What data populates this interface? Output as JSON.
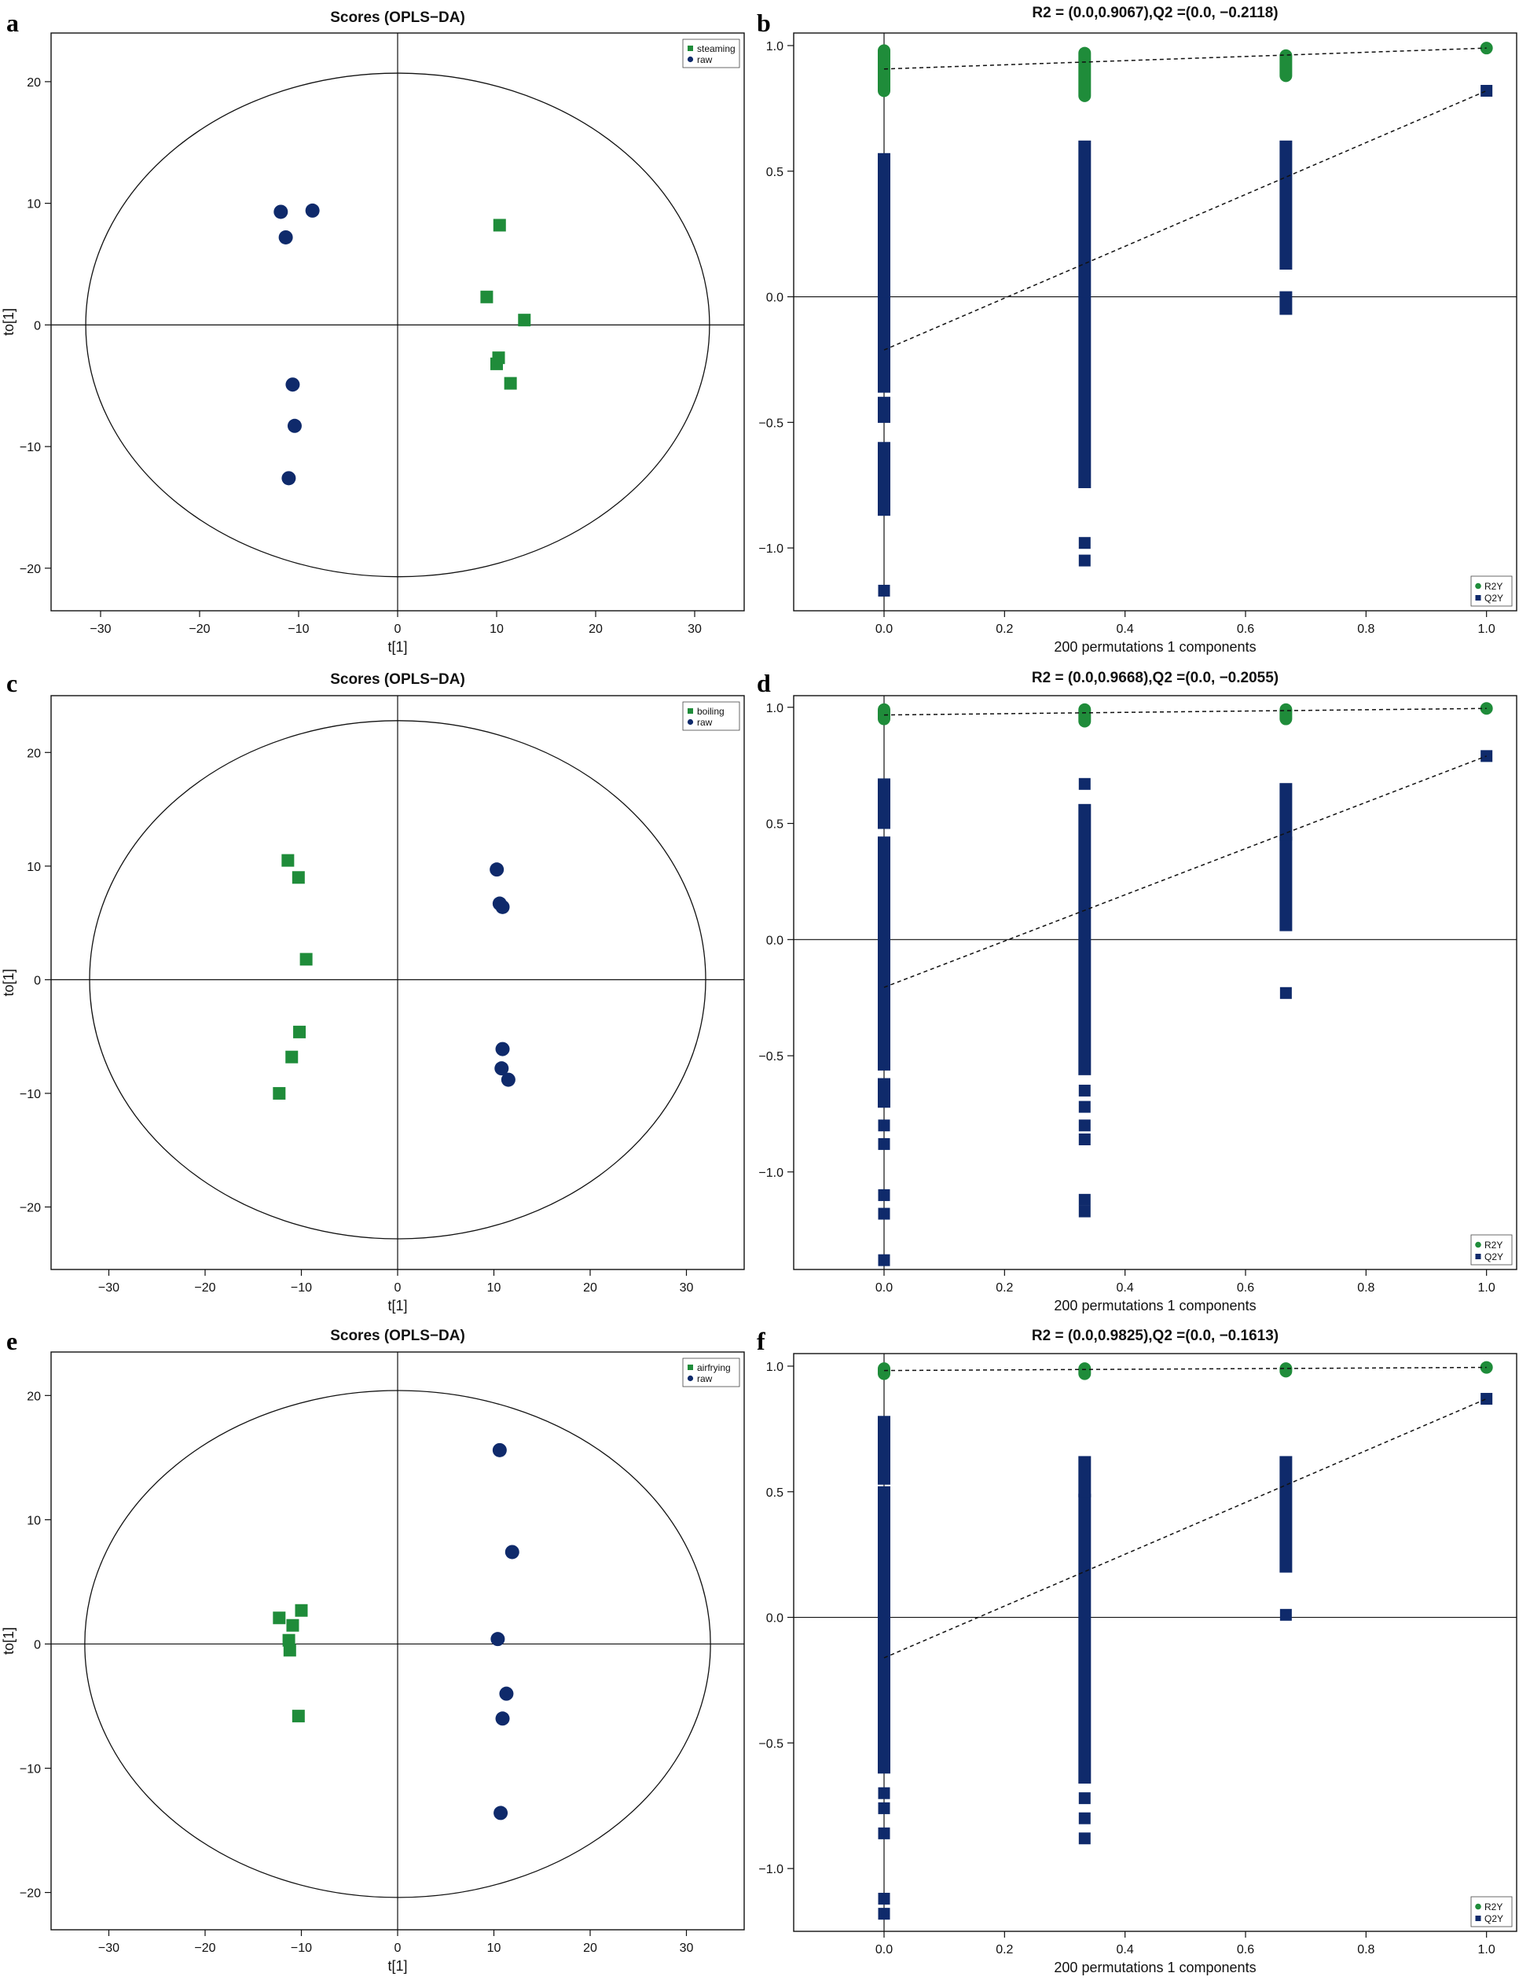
{
  "colors": {
    "green": "#1f8c3a",
    "navy": "#0f2a6b",
    "axis": "#111111"
  },
  "chart_data": [
    {
      "panel": "a",
      "type": "scatter",
      "title": "Scores (OPLS−DA)",
      "xlabel": "t[1]",
      "ylabel": "to[1]",
      "xlim": [
        -35,
        35
      ],
      "ylim": [
        -23.5,
        24
      ],
      "xticks": [
        -30,
        -20,
        -10,
        0,
        10,
        20,
        30
      ],
      "yticks": [
        -20,
        -10,
        0,
        10,
        20
      ],
      "xtick_labels": [
        "−30",
        "−20",
        "−10",
        "0",
        "10",
        "20",
        "30"
      ],
      "ytick_labels": [
        "−20",
        "−10",
        "0",
        "10",
        "20"
      ],
      "ellipse": {
        "rx": 31.5,
        "ry": 20.7
      },
      "legend": {
        "position": "top-right",
        "entries": [
          "steaming",
          "raw"
        ]
      },
      "series": [
        {
          "name": "steaming",
          "marker": "square",
          "color": "green",
          "points": [
            [
              10.3,
              8.2
            ],
            [
              9.0,
              2.3
            ],
            [
              12.8,
              0.4
            ],
            [
              10.2,
              -2.7
            ],
            [
              10.0,
              -3.2
            ],
            [
              11.4,
              -4.8
            ]
          ]
        },
        {
          "name": "raw",
          "marker": "circle",
          "color": "navy",
          "points": [
            [
              -11.8,
              9.3
            ],
            [
              -8.6,
              9.4
            ],
            [
              -11.3,
              7.2
            ],
            [
              -10.6,
              -4.9
            ],
            [
              -10.4,
              -8.3
            ],
            [
              -11.0,
              -12.6
            ]
          ]
        }
      ]
    },
    {
      "panel": "b",
      "type": "scatter",
      "title": "R2 = (0.0,0.9067),Q2 =(0.0, −0.2118)",
      "xlabel": "200 permutations 1 components",
      "ylabel": "",
      "xlim": [
        -0.15,
        1.05
      ],
      "ylim": [
        -1.25,
        1.05
      ],
      "xticks": [
        0,
        0.2,
        0.4,
        0.6,
        0.8,
        1.0
      ],
      "yticks": [
        -1.0,
        -0.5,
        0.0,
        0.5,
        1.0
      ],
      "xtick_labels": [
        "0.0",
        "0.2",
        "0.4",
        "0.6",
        "0.8",
        "1.0"
      ],
      "ytick_labels": [
        "−1.0",
        "−0.5",
        "0.0",
        "0.5",
        "1.0"
      ],
      "legend": {
        "position": "bottom-right",
        "entries": [
          "R2Y",
          "Q2Y"
        ]
      },
      "r2_line": [
        [
          0,
          0.9067
        ],
        [
          1,
          0.99
        ]
      ],
      "q2_line": [
        [
          0,
          -0.2118
        ],
        [
          1,
          0.82
        ]
      ],
      "r2_columns": [
        [
          0,
          0.82,
          0.98
        ],
        [
          0.333,
          0.8,
          0.97
        ],
        [
          0.667,
          0.88,
          0.96
        ]
      ],
      "r2_final": [
        1,
        0.99
      ],
      "q2_columns": [
        {
          "x": 0,
          "segments": [
            [
              -0.85,
              -0.6
            ],
            [
              -0.48,
              -0.42
            ],
            [
              -0.36,
              -0.02
            ],
            [
              0.02,
              0.55
            ]
          ],
          "outliers": [
            -1.17
          ]
        },
        {
          "x": 0.333,
          "segments": [
            [
              -0.74,
              -0.02
            ],
            [
              0.02,
              0.6
            ]
          ],
          "outliers": [
            -0.98,
            -1.05
          ]
        },
        {
          "x": 0.667,
          "segments": [
            [
              -0.05,
              0.0
            ],
            [
              0.13,
              0.6
            ]
          ],
          "outliers": []
        }
      ],
      "q2_final": [
        1,
        0.82
      ]
    },
    {
      "panel": "c",
      "type": "scatter",
      "title": "Scores (OPLS−DA)",
      "xlabel": "t[1]",
      "ylabel": "to[1]",
      "xlim": [
        -36,
        36
      ],
      "ylim": [
        -25.5,
        25
      ],
      "xticks": [
        -30,
        -20,
        -10,
        0,
        10,
        20,
        30
      ],
      "yticks": [
        -20,
        -10,
        0,
        10,
        20
      ],
      "xtick_labels": [
        "−30",
        "−20",
        "−10",
        "0",
        "10",
        "20",
        "30"
      ],
      "ytick_labels": [
        "−20",
        "−10",
        "0",
        "10",
        "20"
      ],
      "ellipse": {
        "rx": 32.0,
        "ry": 22.8
      },
      "legend": {
        "position": "top-right",
        "entries": [
          "boiling",
          "raw"
        ]
      },
      "series": [
        {
          "name": "boiling",
          "marker": "square",
          "color": "green",
          "points": [
            [
              -11.4,
              10.5
            ],
            [
              -10.3,
              9.0
            ],
            [
              -9.5,
              1.8
            ],
            [
              -10.2,
              -4.6
            ],
            [
              -11.0,
              -6.8
            ],
            [
              -12.3,
              -10.0
            ]
          ]
        },
        {
          "name": "raw",
          "marker": "circle",
          "color": "navy",
          "points": [
            [
              10.3,
              9.7
            ],
            [
              10.6,
              6.7
            ],
            [
              10.9,
              6.4
            ],
            [
              10.9,
              -6.1
            ],
            [
              10.8,
              -7.8
            ],
            [
              11.5,
              -8.8
            ]
          ]
        }
      ]
    },
    {
      "panel": "d",
      "type": "scatter",
      "title": "R2 = (0.0,0.9668),Q2 =(0.0, −0.2055)",
      "xlabel": "200 permutations 1 components",
      "ylabel": "",
      "xlim": [
        -0.15,
        1.05
      ],
      "ylim": [
        -1.42,
        1.05
      ],
      "xticks": [
        0,
        0.2,
        0.4,
        0.6,
        0.8,
        1.0
      ],
      "yticks": [
        -1.0,
        -0.5,
        0.0,
        0.5,
        1.0
      ],
      "xtick_labels": [
        "0.0",
        "0.2",
        "0.4",
        "0.6",
        "0.8",
        "1.0"
      ],
      "ytick_labels": [
        "−1.0",
        "−0.5",
        "0.0",
        "0.5",
        "1.0"
      ],
      "legend": {
        "position": "bottom-right",
        "entries": [
          "R2Y",
          "Q2Y"
        ]
      },
      "r2_line": [
        [
          0,
          0.9668
        ],
        [
          1,
          0.995
        ]
      ],
      "q2_line": [
        [
          0,
          -0.2055
        ],
        [
          1,
          0.79
        ]
      ],
      "r2_columns": [
        [
          0,
          0.95,
          0.99
        ],
        [
          0.333,
          0.94,
          0.99
        ],
        [
          0.667,
          0.95,
          0.99
        ]
      ],
      "r2_final": [
        1,
        0.995
      ],
      "q2_columns": [
        {
          "x": 0,
          "segments": [
            [
              -0.7,
              -0.62
            ],
            [
              -0.54,
              0.42
            ],
            [
              0.5,
              0.67
            ]
          ],
          "outliers": [
            -0.8,
            -0.88,
            -1.1,
            -1.18,
            -1.38
          ]
        },
        {
          "x": 0.333,
          "segments": [
            [
              -0.56,
              0.56
            ]
          ],
          "outliers": [
            0.67,
            -0.65,
            -0.72,
            -0.8,
            -0.86,
            -1.12,
            -1.17
          ]
        },
        {
          "x": 0.667,
          "segments": [
            [
              0.06,
              0.42
            ],
            [
              0.45,
              0.65
            ]
          ],
          "outliers": [
            -0.23
          ]
        }
      ],
      "q2_final": [
        1,
        0.79
      ]
    },
    {
      "panel": "e",
      "type": "scatter",
      "title": "Scores (OPLS−DA)",
      "xlabel": "t[1]",
      "ylabel": "to[1]",
      "xlim": [
        -36,
        36
      ],
      "ylim": [
        -23,
        23.5
      ],
      "xticks": [
        -30,
        -20,
        -10,
        0,
        10,
        20,
        30
      ],
      "yticks": [
        -20,
        -10,
        0,
        10,
        20
      ],
      "xtick_labels": [
        "−30",
        "−20",
        "−10",
        "0",
        "10",
        "20",
        "30"
      ],
      "ytick_labels": [
        "−20",
        "−10",
        "0",
        "10",
        "20"
      ],
      "ellipse": {
        "rx": 32.5,
        "ry": 20.4
      },
      "legend": {
        "position": "top-right",
        "entries": [
          "airfrying",
          "raw"
        ]
      },
      "series": [
        {
          "name": "airfrying",
          "marker": "square",
          "color": "green",
          "points": [
            [
              -12.3,
              2.1
            ],
            [
              -10.0,
              2.7
            ],
            [
              -10.9,
              1.5
            ],
            [
              -11.3,
              0.3
            ],
            [
              -11.2,
              -0.5
            ],
            [
              -10.3,
              -5.8
            ]
          ]
        },
        {
          "name": "raw",
          "marker": "circle",
          "color": "navy",
          "points": [
            [
              10.6,
              15.6
            ],
            [
              11.9,
              7.4
            ],
            [
              10.4,
              0.4
            ],
            [
              11.3,
              -4.0
            ],
            [
              10.9,
              -6.0
            ],
            [
              10.7,
              -13.6
            ]
          ]
        }
      ]
    },
    {
      "panel": "f",
      "type": "scatter",
      "title": "R2 = (0.0,0.9825),Q2 =(0.0, −0.1613)",
      "xlabel": "200 permutations 1 components",
      "ylabel": "",
      "xlim": [
        -0.15,
        1.05
      ],
      "ylim": [
        -1.25,
        1.05
      ],
      "xticks": [
        0,
        0.2,
        0.4,
        0.6,
        0.8,
        1.0
      ],
      "yticks": [
        -1.0,
        -0.5,
        0.0,
        0.5,
        1.0
      ],
      "xtick_labels": [
        "0.0",
        "0.2",
        "0.4",
        "0.6",
        "0.8",
        "1.0"
      ],
      "ytick_labels": [
        "−1.0",
        "−0.5",
        "0.0",
        "0.5",
        "1.0"
      ],
      "legend": {
        "position": "bottom-right",
        "entries": [
          "R2Y",
          "Q2Y"
        ]
      },
      "r2_line": [
        [
          0,
          0.9825
        ],
        [
          1,
          0.995
        ]
      ],
      "q2_line": [
        [
          0,
          -0.1613
        ],
        [
          1,
          0.87
        ]
      ],
      "r2_columns": [
        [
          0,
          0.97,
          0.99
        ],
        [
          0.333,
          0.97,
          0.99
        ],
        [
          0.667,
          0.98,
          0.99
        ]
      ],
      "r2_final": [
        1,
        0.995
      ],
      "q2_columns": [
        {
          "x": 0,
          "segments": [
            [
              -0.6,
              0.5
            ],
            [
              0.55,
              0.78
            ]
          ],
          "outliers": [
            -0.7,
            -0.76,
            -0.86,
            -1.12,
            -1.18
          ]
        },
        {
          "x": 0.333,
          "segments": [
            [
              -0.64,
              0.47
            ],
            [
              0.5,
              0.62
            ]
          ],
          "outliers": [
            -0.72,
            -0.8,
            -0.88
          ]
        },
        {
          "x": 0.667,
          "segments": [
            [
              0.2,
              0.62
            ]
          ],
          "outliers": [
            0.01
          ]
        }
      ],
      "q2_final": [
        1,
        0.87
      ]
    }
  ]
}
